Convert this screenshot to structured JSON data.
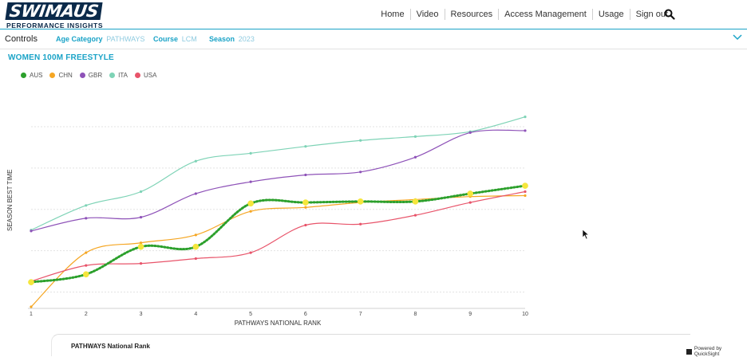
{
  "header": {
    "logo_main": "SWIMAUS",
    "logo_sub": "PERFORMANCE INSIGHTS",
    "nav": [
      "Home",
      "Video",
      "Resources",
      "Access Management",
      "Usage",
      "Sign out"
    ]
  },
  "controls": {
    "title": "Controls",
    "age_category_label": "Age Category",
    "age_category_value": "PATHWAYS",
    "course_label": "Course",
    "course_value": "LCM",
    "season_label": "Season",
    "season_value": "2023"
  },
  "chart_title": "WOMEN 100M FREESTYLE",
  "footer": {
    "panel_label": "PATHWAYS National Rank",
    "powered_by": "Powered by QuickSight"
  },
  "chart_data": {
    "type": "line",
    "xlabel": "PATHWAYS NATIONAL RANK",
    "ylabel": "SEASON BEST TIME",
    "x": [
      1,
      2,
      3,
      4,
      5,
      6,
      7,
      8,
      9,
      10
    ],
    "xlim": [
      1,
      10
    ],
    "ylim": [
      0,
      1
    ],
    "grid": true,
    "legend": "top-left",
    "series": [
      {
        "name": "AUS",
        "color": "#2ca02c",
        "style": "dotted",
        "values": [
          0.125,
          0.165,
          0.305,
          0.305,
          0.525,
          0.53,
          0.535,
          0.535,
          0.575,
          0.615
        ]
      },
      {
        "name": "CHN",
        "color": "#f5a623",
        "style": "solid",
        "values": [
          0.0,
          0.275,
          0.325,
          0.365,
          0.485,
          0.505,
          0.53,
          0.545,
          0.56,
          0.565
        ]
      },
      {
        "name": "GBR",
        "color": "#8e52b8",
        "style": "solid",
        "values": [
          0.385,
          0.45,
          0.455,
          0.575,
          0.635,
          0.67,
          0.685,
          0.76,
          0.885,
          0.895
        ]
      },
      {
        "name": "ITA",
        "color": "#7ed3b6",
        "style": "solid",
        "values": [
          0.39,
          0.515,
          0.585,
          0.74,
          0.78,
          0.815,
          0.845,
          0.865,
          0.89,
          0.965
        ]
      },
      {
        "name": "USA",
        "color": "#e8546a",
        "style": "solid",
        "values": [
          0.13,
          0.21,
          0.22,
          0.245,
          0.275,
          0.415,
          0.42,
          0.465,
          0.53,
          0.585
        ]
      }
    ]
  }
}
